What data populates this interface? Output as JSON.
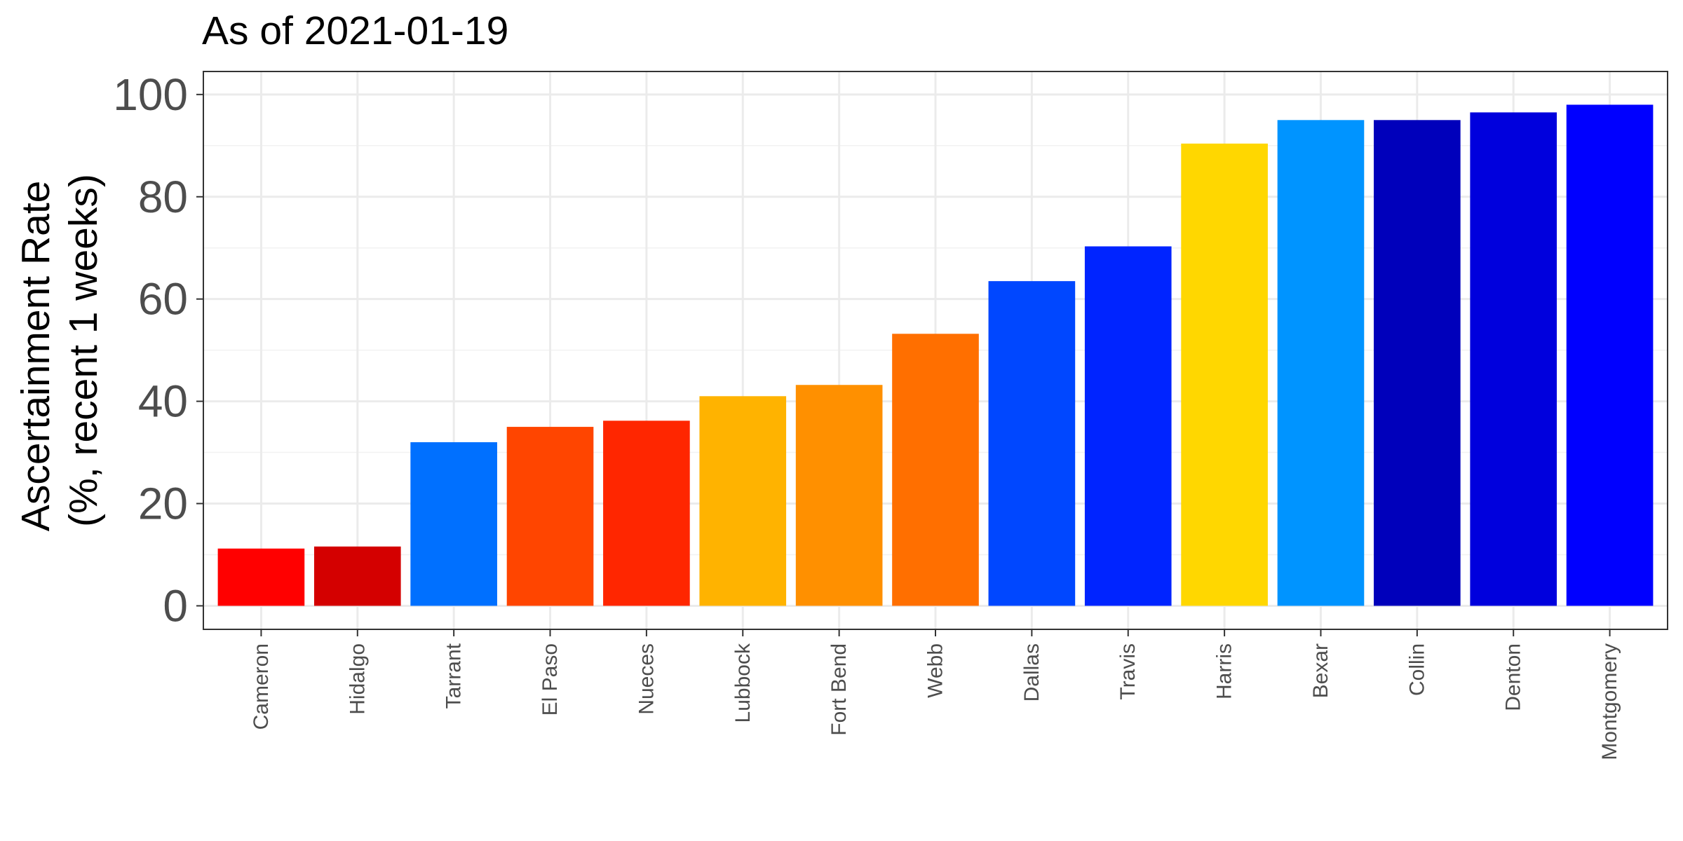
{
  "chart_data": {
    "type": "bar",
    "title": "As of 2021-01-19",
    "xlabel": "",
    "ylabel_lines": [
      "Ascertainment Rate",
      "(%, recent 1 weeks)"
    ],
    "ylim": [
      -4.6,
      104.5
    ],
    "yticks": [
      0,
      20,
      40,
      60,
      80,
      100
    ],
    "ytick_labels": [
      "0",
      "20",
      "40",
      "60",
      "80",
      "100"
    ],
    "grid": true,
    "legend": "none",
    "categories": [
      "Cameron",
      "Hidalgo",
      "Tarrant",
      "El Paso",
      "Nueces",
      "Lubbock",
      "Fort Bend",
      "Webb",
      "Dallas",
      "Travis",
      "Harris",
      "Bexar",
      "Collin",
      "Denton",
      "Montgomery"
    ],
    "values": [
      11.2,
      11.6,
      32.0,
      35.0,
      36.2,
      41.0,
      43.2,
      53.2,
      63.5,
      70.3,
      90.4,
      95.0,
      95.0,
      96.5,
      98.0
    ],
    "colors": [
      "#FF0000",
      "#D40000",
      "#0070FF",
      "#FF4500",
      "#FF2600",
      "#FFB300",
      "#FF9000",
      "#FF6F00",
      "#0047FF",
      "#0024FF",
      "#FFD700",
      "#0094FF",
      "#0000BB",
      "#0000DD",
      "#0000FF"
    ]
  }
}
